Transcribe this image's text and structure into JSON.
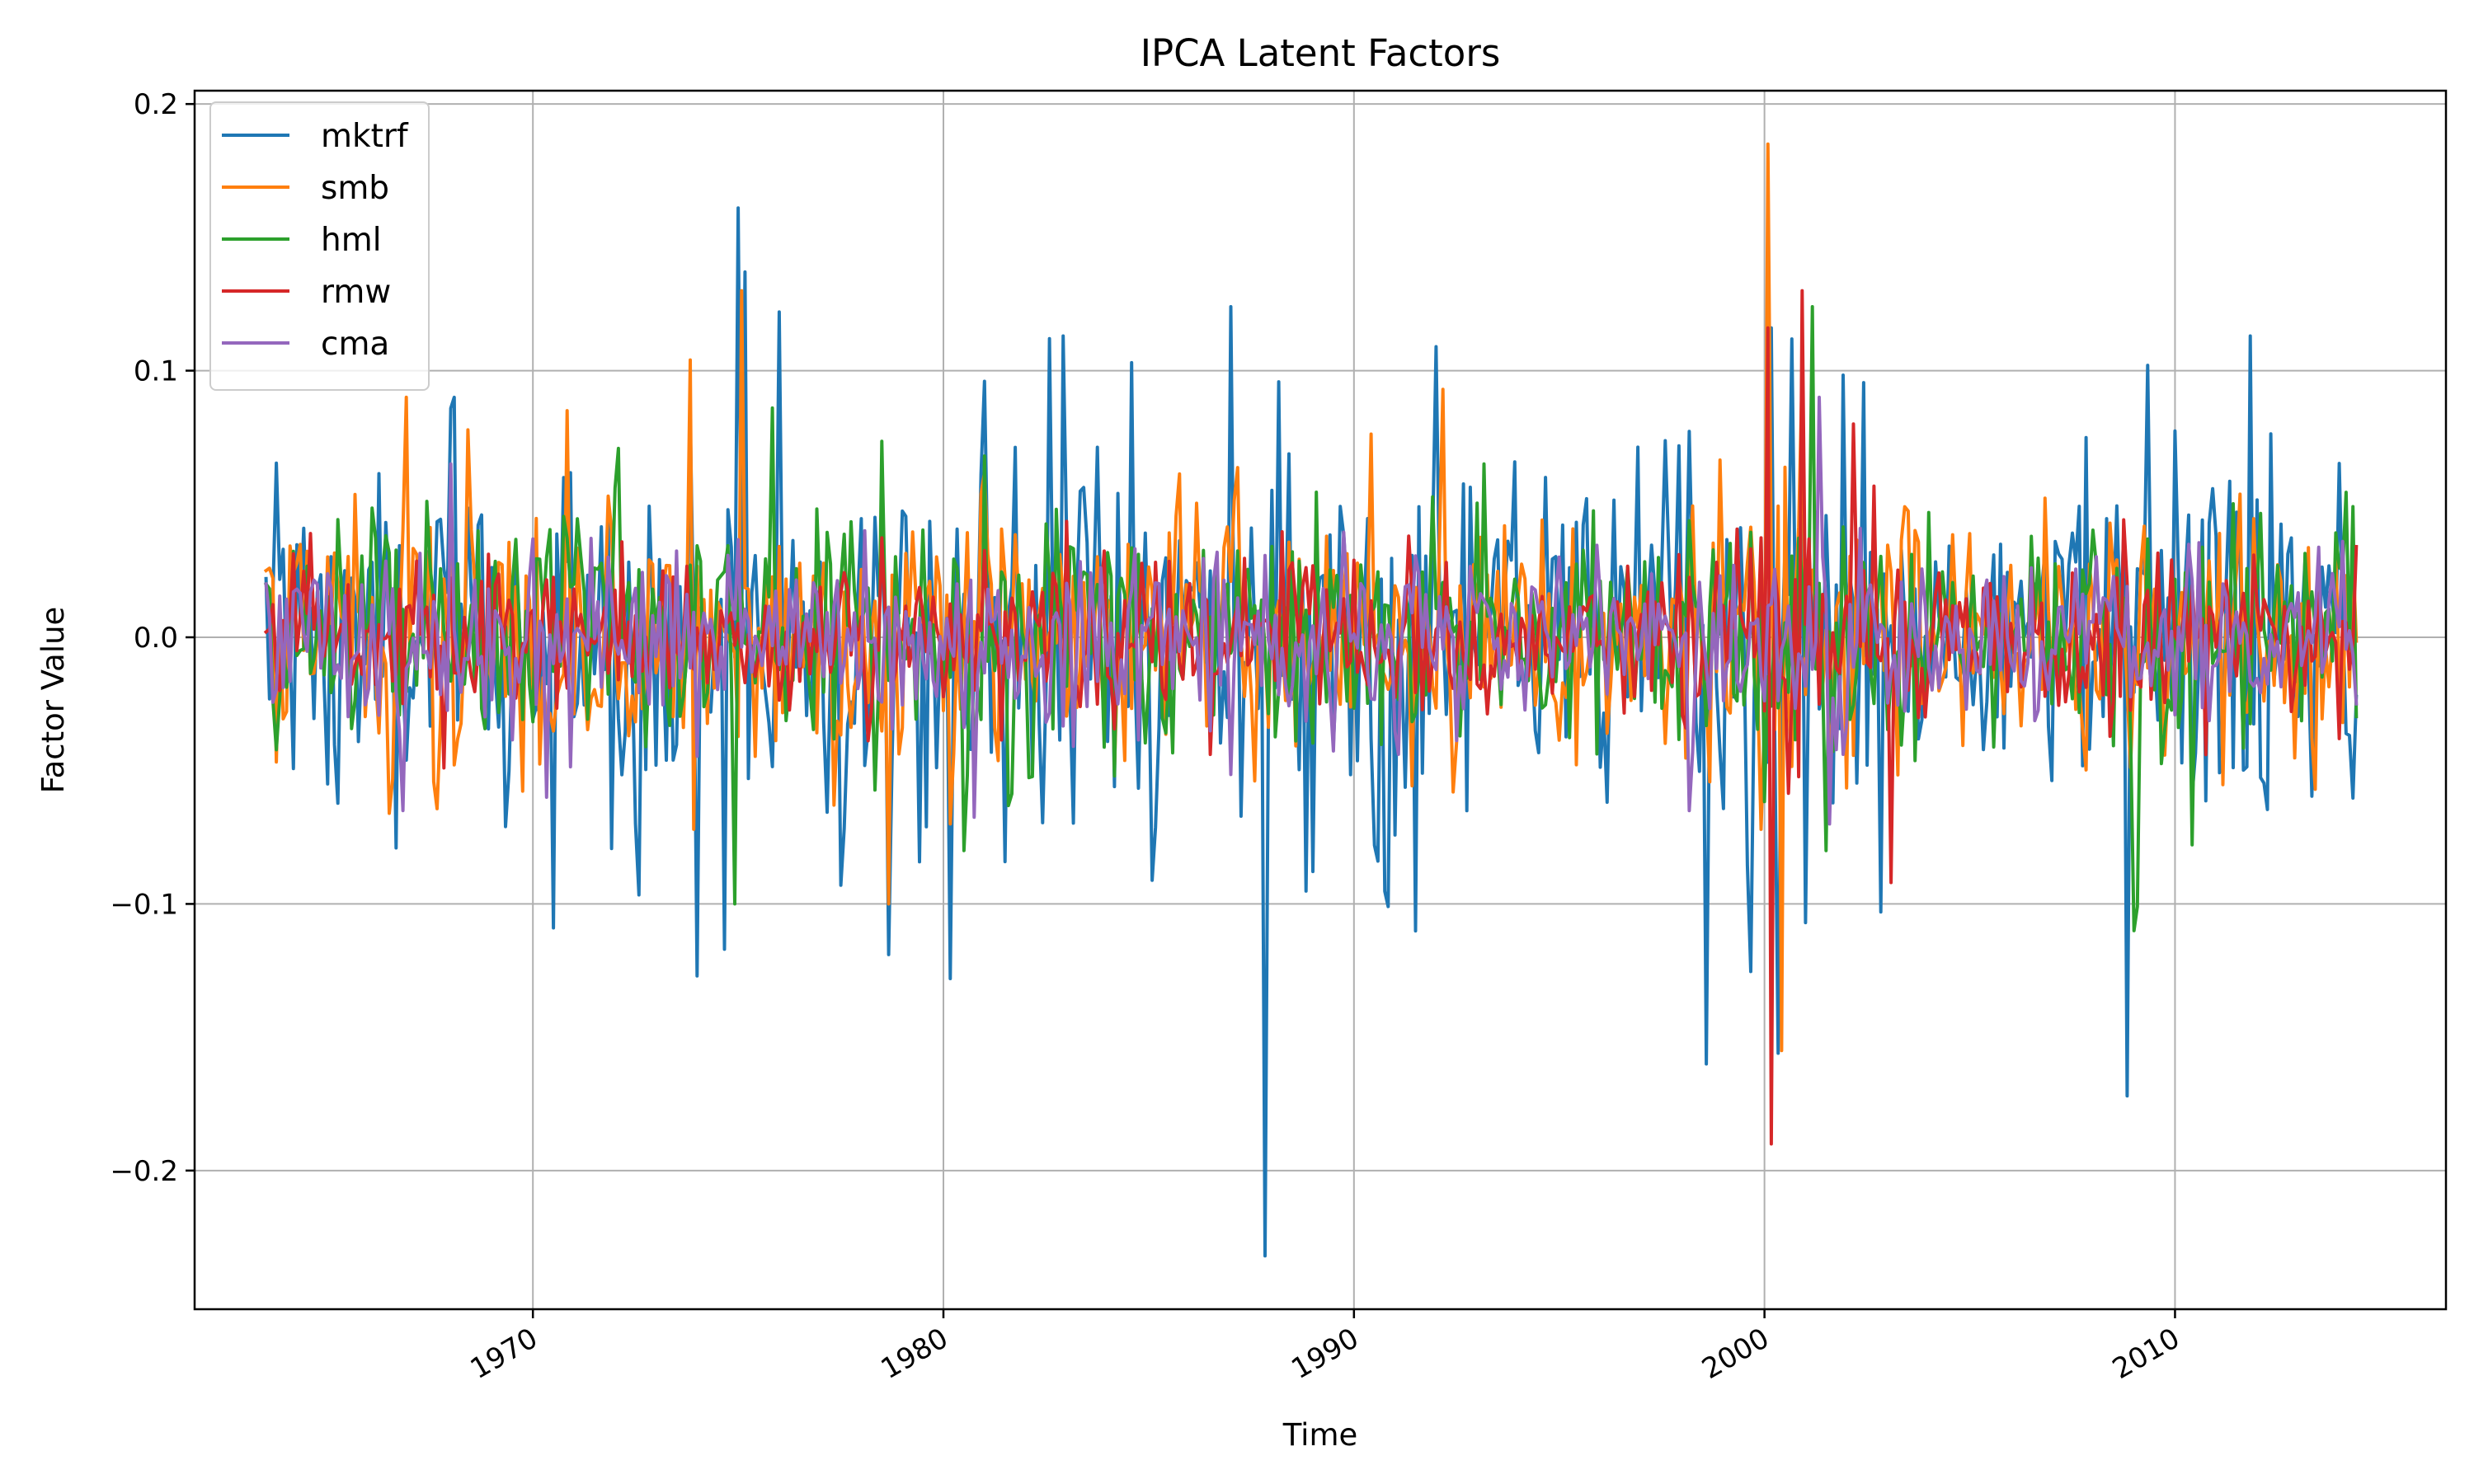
{
  "chart_data": {
    "type": "line",
    "title": "IPCA Latent Factors",
    "xlabel": "Time",
    "ylabel": "Factor Value",
    "x_range": [
      "1963-07",
      "2014-06"
    ],
    "frequency": "monthly",
    "xlim": [
      1961.76,
      2016.6
    ],
    "ylim": [
      -0.252,
      0.205
    ],
    "x_ticks": [
      {
        "value": 1970,
        "label": "1970"
      },
      {
        "value": 1980,
        "label": "1980"
      },
      {
        "value": 1990,
        "label": "1990"
      },
      {
        "value": 2000,
        "label": "2000"
      },
      {
        "value": 2010,
        "label": "2010"
      }
    ],
    "y_ticks": [
      {
        "value": 0.2,
        "label": "0.2"
      },
      {
        "value": 0.1,
        "label": "0.1"
      },
      {
        "value": 0.0,
        "label": "0.0"
      },
      {
        "value": -0.1,
        "label": "−0.1"
      },
      {
        "value": -0.2,
        "label": "−0.2"
      }
    ],
    "grid": true,
    "legend": {
      "position": "top-left"
    },
    "series": [
      {
        "name": "mktrf",
        "color": "#1f77b4",
        "approx_std": 0.035,
        "key_points": [
          {
            "x": 1963.5,
            "y": 0.022
          },
          {
            "x": 1965.0,
            "y": -0.055
          },
          {
            "x": 1966.7,
            "y": -0.079
          },
          {
            "x": 1968.1,
            "y": 0.09
          },
          {
            "x": 1969.3,
            "y": -0.071
          },
          {
            "x": 1970.5,
            "y": -0.109
          },
          {
            "x": 1974.0,
            "y": -0.127
          },
          {
            "x": 1974.7,
            "y": -0.117
          },
          {
            "x": 1975.0,
            "y": 0.161
          },
          {
            "x": 1975.2,
            "y": 0.137
          },
          {
            "x": 1976.0,
            "y": 0.122
          },
          {
            "x": 1978.7,
            "y": -0.119
          },
          {
            "x": 1980.2,
            "y": -0.128
          },
          {
            "x": 1981.0,
            "y": 0.096
          },
          {
            "x": 1982.6,
            "y": 0.112
          },
          {
            "x": 1982.9,
            "y": 0.113
          },
          {
            "x": 1984.6,
            "y": 0.103
          },
          {
            "x": 1987.0,
            "y": 0.124
          },
          {
            "x": 1987.8,
            "y": -0.232
          },
          {
            "x": 1990.5,
            "y": -0.078
          },
          {
            "x": 1990.8,
            "y": -0.101
          },
          {
            "x": 1992.0,
            "y": 0.109
          },
          {
            "x": 1998.6,
            "y": -0.16
          },
          {
            "x": 2000.2,
            "y": 0.116
          },
          {
            "x": 2000.3,
            "y": -0.156
          },
          {
            "x": 2001.0,
            "y": -0.107
          },
          {
            "x": 2002.8,
            "y": -0.103
          },
          {
            "x": 2008.8,
            "y": -0.172
          },
          {
            "x": 2009.3,
            "y": 0.102
          },
          {
            "x": 2011.8,
            "y": 0.113
          }
        ]
      },
      {
        "name": "smb",
        "color": "#ff7f0e",
        "approx_std": 0.025,
        "key_points": [
          {
            "x": 1963.5,
            "y": 0.025
          },
          {
            "x": 1966.9,
            "y": 0.09
          },
          {
            "x": 1966.5,
            "y": -0.066
          },
          {
            "x": 1970.8,
            "y": 0.085
          },
          {
            "x": 1973.8,
            "y": 0.104
          },
          {
            "x": 1973.9,
            "y": -0.072
          },
          {
            "x": 1975.1,
            "y": 0.13
          },
          {
            "x": 1978.7,
            "y": -0.1
          },
          {
            "x": 1980.2,
            "y": -0.07
          },
          {
            "x": 1992.2,
            "y": 0.093
          },
          {
            "x": 1992.4,
            "y": -0.058
          },
          {
            "x": 1999.9,
            "y": -0.072
          },
          {
            "x": 2000.1,
            "y": 0.185
          },
          {
            "x": 2000.4,
            "y": -0.155
          },
          {
            "x": 2000.9,
            "y": 0.1
          },
          {
            "x": 2014.5,
            "y": -0.04
          }
        ]
      },
      {
        "name": "hml",
        "color": "#2ca02c",
        "approx_std": 0.024,
        "key_points": [
          {
            "x": 1963.5,
            "y": 0.02
          },
          {
            "x": 1974.9,
            "y": -0.1
          },
          {
            "x": 1975.8,
            "y": 0.086
          },
          {
            "x": 1980.5,
            "y": -0.08
          },
          {
            "x": 1981.0,
            "y": 0.068
          },
          {
            "x": 1984.2,
            "y": -0.052
          },
          {
            "x": 1993.2,
            "y": 0.065
          },
          {
            "x": 2001.2,
            "y": 0.124
          },
          {
            "x": 2001.5,
            "y": -0.08
          },
          {
            "x": 2009.0,
            "y": -0.11
          },
          {
            "x": 2009.1,
            "y": -0.101
          },
          {
            "x": 2014.3,
            "y": 0.049
          }
        ]
      },
      {
        "name": "rmw",
        "color": "#d62728",
        "approx_std": 0.015,
        "key_points": [
          {
            "x": 1963.5,
            "y": 0.002
          },
          {
            "x": 1963.8,
            "y": -0.02
          },
          {
            "x": 1967.8,
            "y": -0.049
          },
          {
            "x": 2000.1,
            "y": 0.116
          },
          {
            "x": 2000.2,
            "y": -0.19
          },
          {
            "x": 2000.9,
            "y": 0.13
          },
          {
            "x": 2002.2,
            "y": 0.08
          },
          {
            "x": 2003.1,
            "y": -0.092
          },
          {
            "x": 2014.0,
            "y": -0.038
          },
          {
            "x": 2014.4,
            "y": 0.034
          }
        ]
      },
      {
        "name": "cma",
        "color": "#9467bd",
        "approx_std": 0.018,
        "key_points": [
          {
            "x": 1963.5,
            "y": 0.02
          },
          {
            "x": 1968.0,
            "y": 0.065
          },
          {
            "x": 1966.8,
            "y": -0.065
          },
          {
            "x": 1970.3,
            "y": -0.06
          },
          {
            "x": 1998.2,
            "y": -0.065
          },
          {
            "x": 2001.3,
            "y": 0.09
          },
          {
            "x": 2001.6,
            "y": -0.07
          },
          {
            "x": 2014.5,
            "y": -0.01
          }
        ]
      }
    ]
  }
}
